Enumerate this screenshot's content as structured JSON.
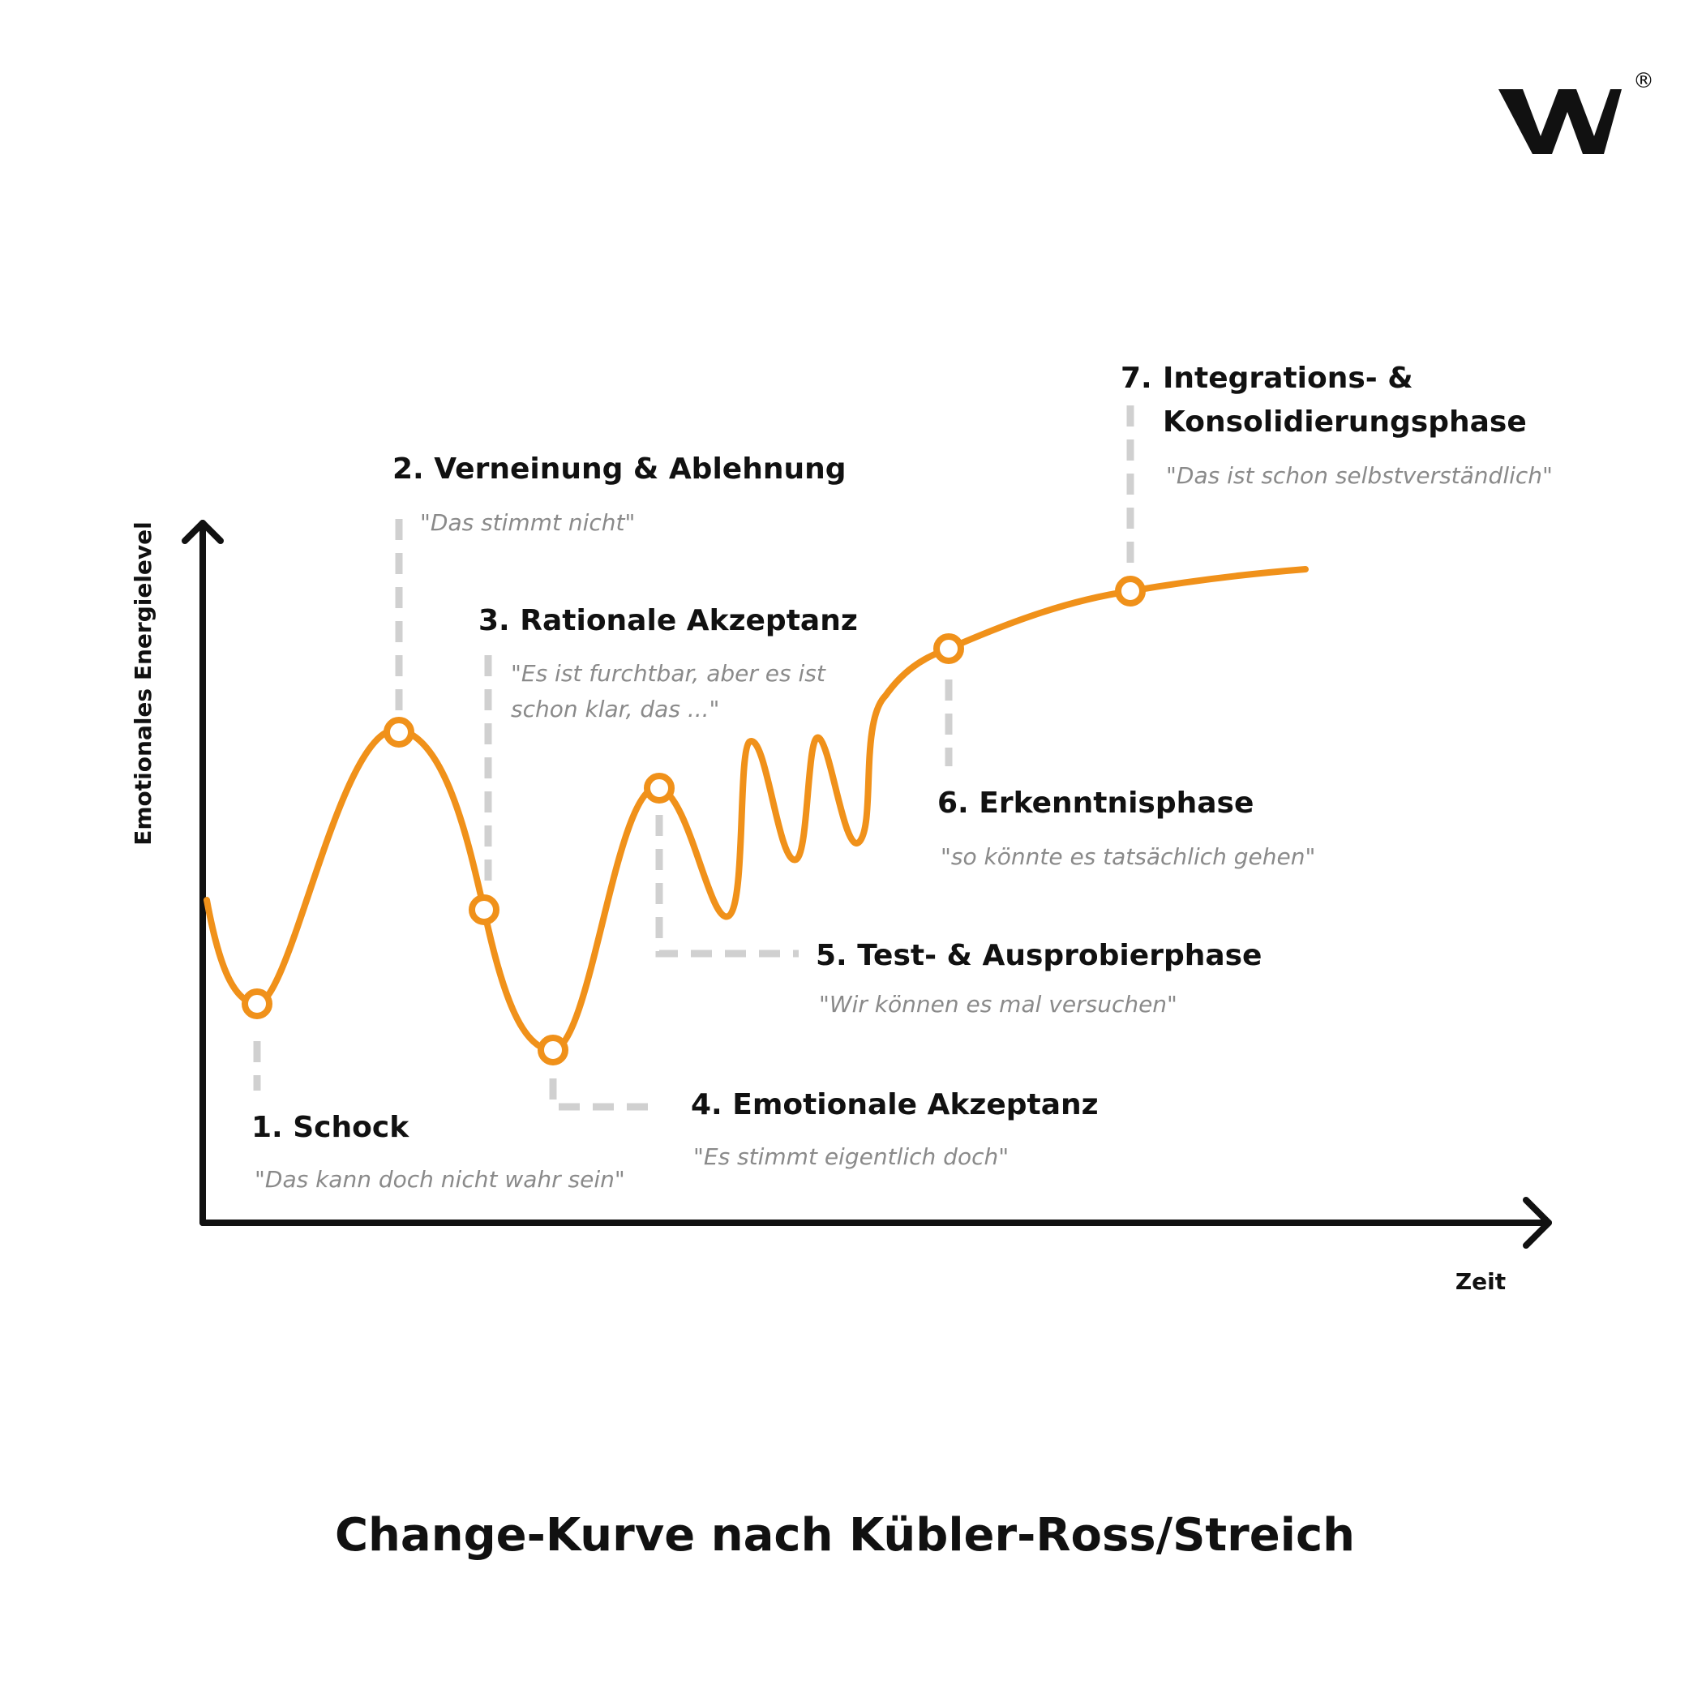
{
  "colors": {
    "curve": "#F0911A",
    "axis": "#111111",
    "leader": "#D0D0D0",
    "quote": "#8A8A8A",
    "text": "#111111"
  },
  "logo": {
    "text": "W",
    "registered": "®"
  },
  "axes": {
    "y_label": "Emotionales Energielevel",
    "x_label": "Zeit"
  },
  "phases": [
    {
      "title": "1. Schock",
      "quote": "\"Das kann doch nicht wahr sein\""
    },
    {
      "title": "2. Verneinung & Ablehnung",
      "quote": "\"Das stimmt nicht\""
    },
    {
      "title": "3. Rationale Akzeptanz",
      "quote_line1": "\"Es ist furchtbar, aber es ist",
      "quote_line2": "schon klar, das ...\""
    },
    {
      "title": "4. Emotionale Akzeptanz",
      "quote": "\"Es stimmt eigentlich doch\""
    },
    {
      "title": "5. Test- & Ausprobierphase",
      "quote": "\"Wir können es mal versuchen\""
    },
    {
      "title": "6. Erkenntnisphase",
      "quote": "\"so könnte es tatsächlich gehen\""
    },
    {
      "number": "7.",
      "title_line1": "Integrations- &",
      "title_line2": "Konsolidierungsphase",
      "quote": "\"Das ist schon selbstverständlich\""
    }
  ],
  "footer": {
    "title": "Change-Kurve nach Kübler-Ross/Streich"
  }
}
